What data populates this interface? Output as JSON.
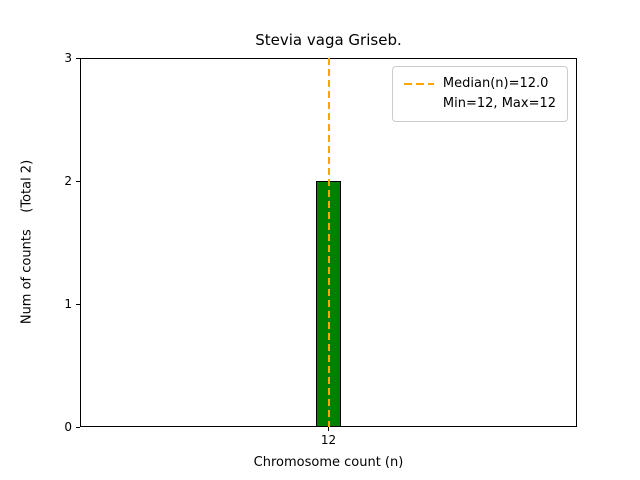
{
  "chart_data": {
    "type": "bar",
    "title": "Stevia vaga Griseb.",
    "xlabel": "Chromosome count (n)",
    "ylabel": "Num of counts    (Total 2)",
    "categories": [
      "12"
    ],
    "values": [
      2
    ],
    "total": 2,
    "ylim": [
      0,
      3
    ],
    "yticks": [
      0,
      1,
      2,
      3
    ],
    "grid": false,
    "bar_color": "#008000",
    "bar_edge_color": "#000000",
    "median_line": {
      "x": 12,
      "value": 12.0,
      "color": "#FFA500",
      "style": "dashed"
    },
    "legend": {
      "position": "upper right",
      "items": [
        {
          "label": "Median(n)=12.0",
          "handle": "dashed-line",
          "color": "#FFA500"
        },
        {
          "label": "Min=12, Max=12",
          "handle": "none"
        }
      ]
    }
  }
}
